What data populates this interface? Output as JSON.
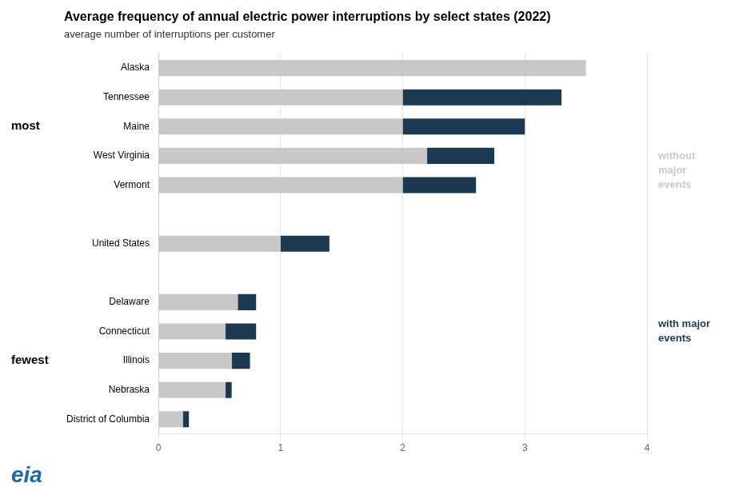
{
  "chart_data": {
    "type": "bar",
    "orientation": "horizontal",
    "stacked": true,
    "title": "Average frequency of annual electric power interruptions by select states (2022)",
    "subtitle": "average number of interruptions per customer",
    "categories": [
      "District of Columbia",
      "Nebraska",
      "Illinois",
      "Connecticut",
      "Delaware",
      null,
      "United States",
      null,
      "Vermont",
      "West Virginia",
      "Maine",
      "Tennessee",
      "Alaska"
    ],
    "series": [
      {
        "name": "without\nmajor\nevents",
        "color": "#c8c8c8",
        "values": [
          0.2,
          0.55,
          0.6,
          0.55,
          0.65,
          null,
          1.0,
          null,
          2.0,
          2.2,
          2.0,
          2.0,
          3.5
        ]
      },
      {
        "name": "with major\nevents",
        "color": "#1b3a52",
        "values": [
          0.05,
          0.05,
          0.15,
          0.25,
          0.15,
          null,
          0.4,
          null,
          0.6,
          0.55,
          1.0,
          1.3,
          0
        ]
      }
    ],
    "xlim": [
      0,
      4.0
    ],
    "xticks": [
      0,
      1,
      2,
      3,
      4
    ],
    "grid": true,
    "annotations": [
      "most",
      "fewest",
      "eia"
    ]
  }
}
